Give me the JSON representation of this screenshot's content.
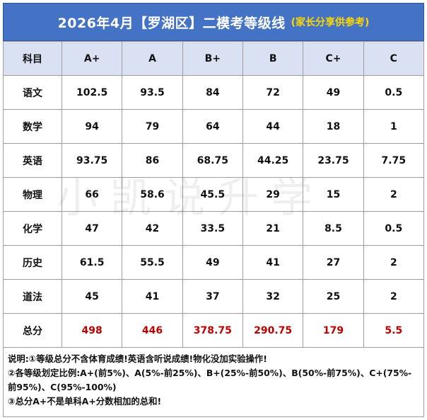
{
  "header": {
    "title": "2026年4月【罗湖区】二模考等级线",
    "subtitle": "(家长分享供参考)"
  },
  "table": {
    "columns": [
      "科目",
      "A+",
      "A",
      "B+",
      "B",
      "C+",
      "C"
    ],
    "rows": [
      {
        "subject": "语文",
        "values": [
          "102.5",
          "93.5",
          "84",
          "72",
          "49",
          "0.5"
        ]
      },
      {
        "subject": "数学",
        "values": [
          "94",
          "79",
          "64",
          "44",
          "18",
          "1"
        ]
      },
      {
        "subject": "英语",
        "values": [
          "93.75",
          "86",
          "68.75",
          "44.25",
          "23.75",
          "7.75"
        ]
      },
      {
        "subject": "物理",
        "values": [
          "66",
          "58.6",
          "45.5",
          "29",
          "15",
          "2"
        ]
      },
      {
        "subject": "化学",
        "values": [
          "47",
          "42",
          "33.5",
          "21",
          "8.5",
          "0.5"
        ]
      },
      {
        "subject": "历史",
        "values": [
          "61.5",
          "55.5",
          "49",
          "41",
          "27",
          "2"
        ]
      },
      {
        "subject": "道法",
        "values": [
          "45",
          "41",
          "37",
          "32",
          "25",
          "2"
        ]
      },
      {
        "subject": "总分",
        "values": [
          "498",
          "446",
          "378.75",
          "290.75",
          "179",
          "5.5"
        ]
      }
    ]
  },
  "watermark": "小凯说升学",
  "notes": {
    "line1": "说明:①等级总分不含体育成绩!英语含听说成绩!物化没加实验操作!",
    "line2": "②各等级划定比例:A+(前5%)、A(5%-前25%)、B+(25%-前50%)、B(50%-前75%)、C+(75%-前95%)、C(95%-100%)",
    "line3": "③总分A+不是单科A+分数相加的总和!"
  },
  "colors": {
    "banner_bg": "#4472c4",
    "subtitle": "#ffd800",
    "header_row_bg": "#d9e1f2",
    "total_row_text": "#c00000"
  }
}
